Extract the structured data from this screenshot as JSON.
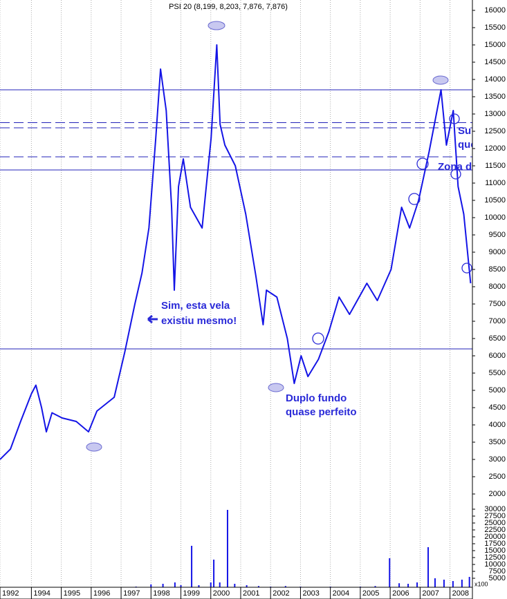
{
  "chart_data": [
    {
      "type": "line",
      "title": "PSI 20 (8,199, 8,203, 7,876, 7,876)",
      "color": "#1414e6",
      "x": [
        1992.95,
        1993.3,
        1993.64,
        1994.0,
        1994.15,
        1994.34,
        1994.5,
        1994.69,
        1995.03,
        1995.5,
        1995.91,
        1996.19,
        1996.77,
        1997.12,
        1997.46,
        1997.7,
        1997.93,
        1998.16,
        1998.32,
        1998.51,
        1998.69,
        1998.78,
        1998.92,
        1999.08,
        1999.32,
        1999.71,
        2000.01,
        2000.2,
        2000.31,
        2000.47,
        2000.82,
        2001.17,
        2001.51,
        2001.75,
        2001.86,
        2002.21,
        2002.56,
        2002.79,
        2003.02,
        2003.25,
        2003.6,
        2003.95,
        2004.29,
        2004.64,
        2005.22,
        2005.57,
        2006.03,
        2006.38,
        2006.65,
        2006.95,
        2007.3,
        2007.7,
        2007.88,
        2008.11,
        2008.27,
        2008.46,
        2008.69
      ],
      "values": [
        3000,
        3300,
        4100,
        4900,
        5150,
        4500,
        3800,
        4350,
        4200,
        4100,
        3800,
        4400,
        4800,
        6100,
        7500,
        8400,
        9700,
        12300,
        14300,
        13100,
        10300,
        7900,
        10900,
        11700,
        10300,
        9700,
        12300,
        15000,
        12700,
        12100,
        11500,
        10100,
        8300,
        6900,
        7900,
        7700,
        6500,
        5200,
        6000,
        5400,
        5900,
        6700,
        7700,
        7200,
        8100,
        7600,
        8500,
        10300,
        9700,
        10500,
        11900,
        13700,
        12100,
        13100,
        10900,
        10100,
        8100
      ],
      "xlim": [
        1992.95,
        2008.75
      ],
      "xticks": [
        {
          "value": 1992.95,
          "label": "1992"
        },
        1994,
        1995,
        1996,
        1997,
        1998,
        1999,
        2000,
        2001,
        2002,
        2003,
        2004,
        2005,
        2006,
        2007,
        2008
      ],
      "ylim": [
        1800,
        16300
      ],
      "yticks": [
        2000,
        2500,
        3000,
        3500,
        4000,
        4500,
        5000,
        5500,
        6000,
        6500,
        7000,
        7500,
        8000,
        8500,
        9000,
        9500,
        10000,
        10500,
        11000,
        11500,
        12000,
        12500,
        13000,
        13500,
        14000,
        14500,
        15000,
        15500,
        16000
      ],
      "hlines": [
        {
          "value": 13700,
          "dashed": false
        },
        {
          "value": 12750,
          "dashed": true
        },
        {
          "value": 12600,
          "dashed": true
        },
        {
          "value": 11760,
          "dashed": true
        },
        {
          "value": 11380,
          "dashed": false
        },
        {
          "value": 6200,
          "dashed": false
        }
      ],
      "hline_color": "#2020b8",
      "annotations": [
        "Sim, esta vela",
        "existiu mesmo!",
        "Duplo fundo",
        "quase perfeito",
        "Su",
        "que",
        "Zona d"
      ]
    },
    {
      "type": "bar",
      "unit_label": "x100",
      "color": "#1414e6",
      "x": [
        1993.0,
        1993.5,
        1994.0,
        1994.5,
        1995.0,
        1995.5,
        1996.0,
        1996.5,
        1997.0,
        1997.5,
        1998.0,
        1998.4,
        1998.8,
        1999.0,
        1999.36,
        1999.6,
        2000.0,
        2000.1,
        2000.3,
        2000.56,
        2000.8,
        2001.2,
        2001.6,
        2002.0,
        2002.5,
        2003.0,
        2003.5,
        2004.0,
        2004.5,
        2005.0,
        2005.5,
        2005.98,
        2006.3,
        2006.6,
        2006.9,
        2007.27,
        2007.5,
        2007.8,
        2008.1,
        2008.4,
        2008.65
      ],
      "values": [
        300,
        400,
        700,
        600,
        500,
        500,
        600,
        800,
        1200,
        2000,
        2800,
        3000,
        3500,
        2500,
        16750,
        2500,
        3500,
        11750,
        3500,
        29750,
        3000,
        2500,
        2200,
        2000,
        2200,
        2000,
        1800,
        2000,
        1800,
        2000,
        2200,
        12250,
        3200,
        3000,
        3500,
        16250,
        5000,
        4500,
        4000,
        4500,
        5500
      ],
      "xlim": [
        1992.95,
        2008.75
      ],
      "ylim": [
        0,
        32500
      ],
      "yticks": [
        5000,
        7500,
        10000,
        12500,
        15000,
        17500,
        20000,
        22500,
        25000,
        27500,
        30000
      ]
    }
  ]
}
